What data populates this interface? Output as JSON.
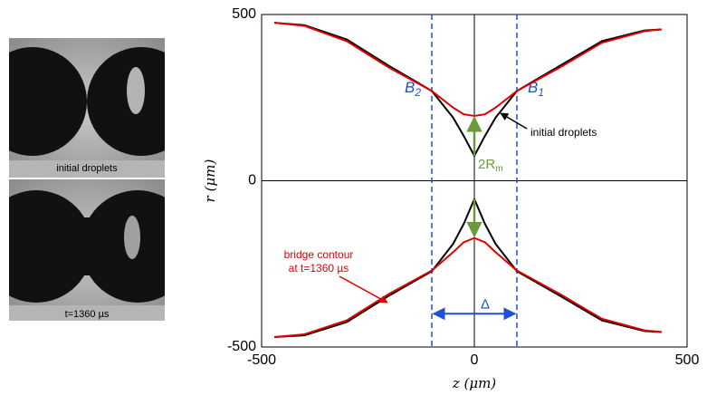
{
  "images": [
    {
      "caption": "initial droplets"
    },
    {
      "caption": "t=1360 µs"
    }
  ],
  "chart_data": {
    "type": "line",
    "xlabel": "z (μm)",
    "ylabel": "r (μm)",
    "x": [
      -470,
      -400,
      -300,
      -200,
      -100,
      -50,
      -25,
      0,
      25,
      50,
      100,
      200,
      300,
      400,
      440,
      null,
      -470,
      -400,
      -300,
      -200,
      -100,
      -50,
      -25,
      0,
      25,
      50,
      100,
      200,
      300,
      400,
      440
    ],
    "series": [
      {
        "name": "initial droplets",
        "color": "#000000",
        "values": [
          475,
          468,
          425,
          345,
          270,
          190,
          135,
          75,
          135,
          190,
          270,
          345,
          420,
          452,
          455,
          null,
          -470,
          -465,
          -425,
          -345,
          -272,
          -190,
          -130,
          -55,
          -130,
          -190,
          -272,
          -345,
          -420,
          -452,
          -455
        ]
      },
      {
        "name": "bridge contour at t=1360 µs",
        "color": "#e00000",
        "values": [
          475,
          466,
          420,
          340,
          270,
          220,
          200,
          195,
          200,
          220,
          270,
          340,
          415,
          450,
          455,
          null,
          -470,
          -462,
          -420,
          -340,
          -270,
          -215,
          -185,
          -172,
          -185,
          -215,
          -270,
          -340,
          -415,
          -450,
          -455
        ]
      }
    ],
    "xlim": [
      -500,
      500
    ],
    "ylim": [
      -500,
      500
    ],
    "xticks": [
      -500,
      0,
      500
    ],
    "yticks": [
      -500,
      0,
      500
    ],
    "vlines": [
      {
        "x": -100,
        "label": "B",
        "sub": "2"
      },
      {
        "x": 100,
        "label": "B",
        "sub": "1"
      }
    ],
    "vline_color": "#1f4fd8",
    "delta": {
      "label": "Δ",
      "from": -100,
      "to": 100,
      "r": -400
    },
    "gap": {
      "label": "2R",
      "sub": "m",
      "color": "#6a9a3a"
    }
  }
}
